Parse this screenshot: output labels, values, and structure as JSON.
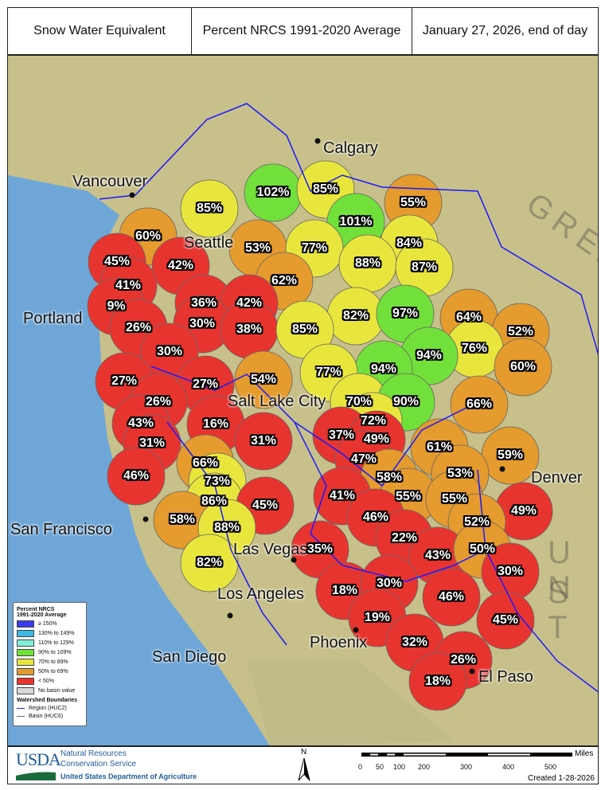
{
  "header": {
    "metric": "Snow Water Equivalent",
    "basis": "Percent NRCS 1991-2020 Average",
    "date": "January 27, 2026, end of day"
  },
  "colors": {
    "ge150": "#3b3bf0",
    "130_149": "#3cb7e6",
    "110_129": "#7ff0da",
    "90_109": "#72e03a",
    "70_89": "#e8e63c",
    "50_69": "#e59b2e",
    "lt50": "#e8342f",
    "none": "#d8d8d8",
    "region_line": "#1a1aff",
    "basin_line": "#666666",
    "ocean": "#6ea6d8",
    "land": "#c8c08a"
  },
  "basin_values": [
    102,
    85,
    55,
    85,
    101,
    60,
    53,
    77,
    84,
    45,
    42,
    88,
    87,
    62,
    41,
    36,
    42,
    9,
    82,
    97,
    64,
    26,
    30,
    38,
    85,
    52,
    76,
    94,
    30,
    60,
    94,
    77,
    27,
    27,
    54,
    70,
    90,
    66,
    26,
    72,
    43,
    16,
    37,
    49,
    31,
    31,
    61,
    59,
    66,
    47,
    58,
    53,
    46,
    73,
    41,
    55,
    55,
    49,
    86,
    45,
    46,
    52,
    58,
    88,
    22,
    35,
    43,
    50,
    82,
    30,
    18,
    30,
    46,
    19,
    45,
    32,
    26,
    18
  ],
  "cities": [
    "Calgary",
    "Vancouver",
    "Seattle",
    "Portland",
    "San Francisco",
    "Salt Lake City",
    "Las Vegas",
    "Los Angeles",
    "San Diego",
    "Phoenix",
    "El Paso",
    "Denver"
  ],
  "map_text": {
    "great": "GREAT",
    "us1": "U N",
    "us2": "S T"
  },
  "legend": {
    "title1": "Percent NRCS",
    "title2": "1991-2020 Average",
    "items": [
      "≥ 150%",
      "130% to 149%",
      "110% to 129%",
      "90% to 109%",
      "70% to 89%",
      "50% to 69%",
      "< 50%",
      "No basin value"
    ],
    "boundaries_title": "Watershed Boundaries",
    "region": "Region (HUC2)",
    "basin": "Basin (HUC6)"
  },
  "footer": {
    "logo": "USDA",
    "agency1": "Natural Resources",
    "agency2": "Conservation Service",
    "department": "United States Department of Agriculture",
    "north": "N",
    "scale_unit": "Miles",
    "scale_ticks": [
      "0",
      "50",
      "100",
      "200",
      "300",
      "400",
      "500"
    ],
    "created": "Created 1-28-2026"
  }
}
